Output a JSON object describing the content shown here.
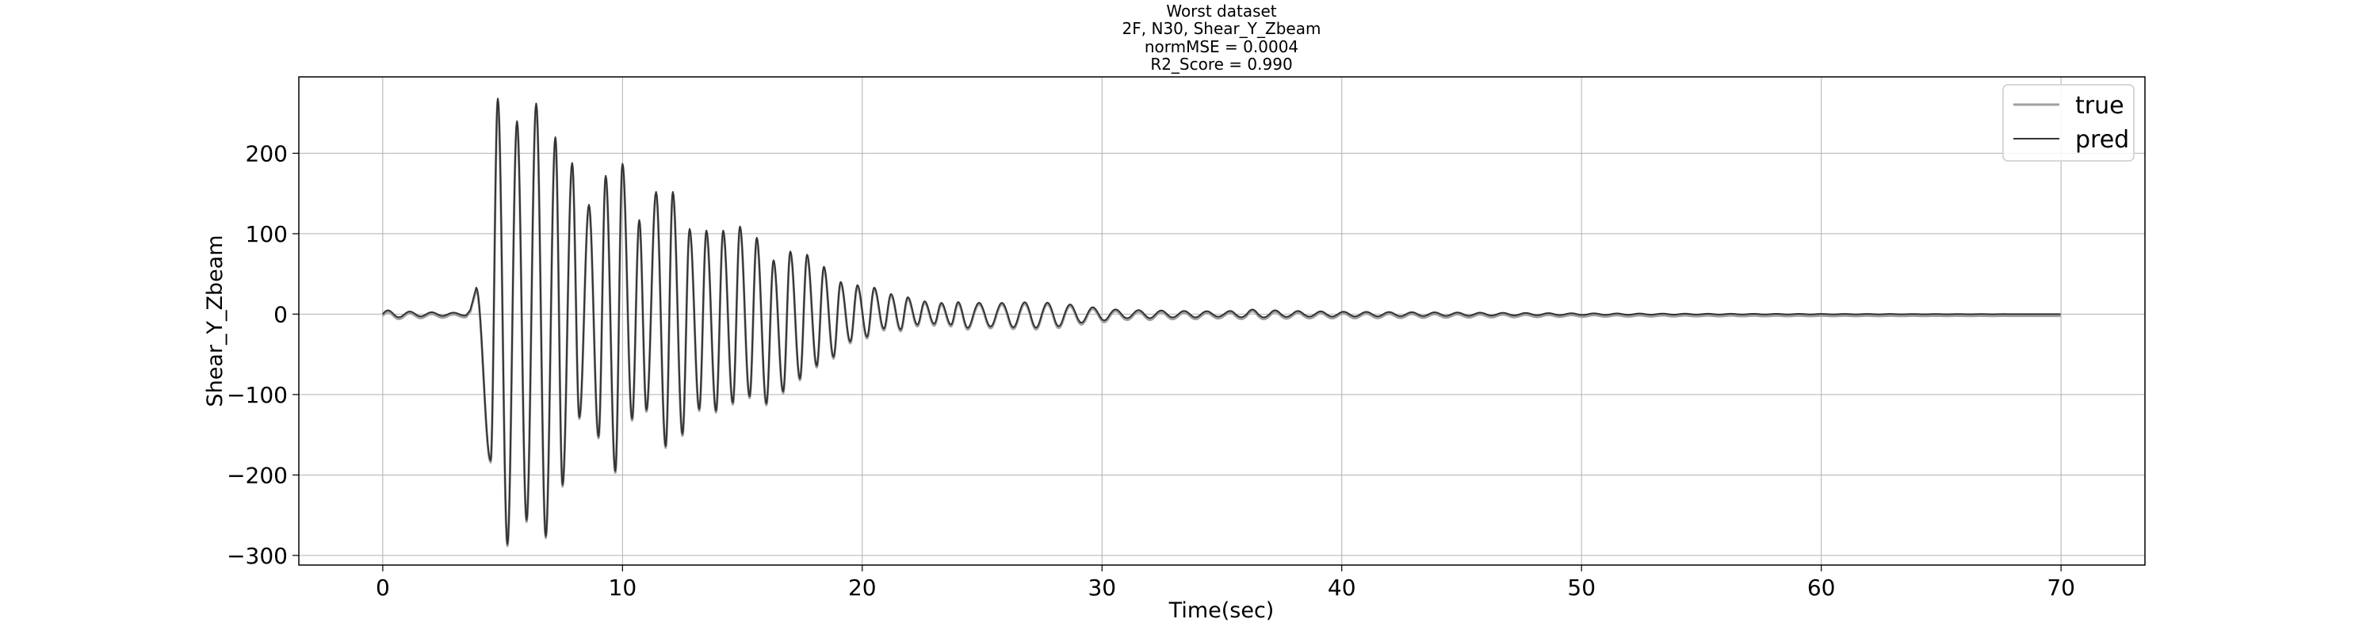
{
  "chart_data": {
    "type": "line",
    "title_lines": [
      "Worst dataset",
      "2F, N30, Shear_Y_Zbeam",
      "normMSE = 0.0004",
      "R2_Score = 0.990"
    ],
    "xlabel": "Time(sec)",
    "ylabel": "Shear_Y_Zbeam",
    "xlim": [
      -3.5,
      73.5
    ],
    "ylim": [
      -312,
      295
    ],
    "xticks": [
      0,
      10,
      20,
      30,
      40,
      50,
      60,
      70
    ],
    "yticks": [
      -300,
      -200,
      -100,
      0,
      100,
      200
    ],
    "xtick_labels": [
      "0",
      "10",
      "20",
      "30",
      "40",
      "50",
      "60",
      "70"
    ],
    "ytick_labels": [
      "−300",
      "−200",
      "−100",
      "0",
      "100",
      "200"
    ],
    "grid": true,
    "legend_position": "top-right",
    "x_range": [
      0,
      70
    ],
    "signal_description": {
      "pre_event": {
        "x": [
          0,
          3.5
        ],
        "amplitude": 4
      },
      "onset_peak": {
        "x": 3.9,
        "y": 33
      },
      "first_trough": {
        "x": 4.5,
        "y": -182
      },
      "peaks": [
        [
          4.8,
          268
        ],
        [
          5.6,
          240
        ],
        [
          6.4,
          262
        ],
        [
          7.2,
          220
        ],
        [
          7.9,
          188
        ],
        [
          8.6,
          136
        ],
        [
          9.3,
          172
        ],
        [
          10.0,
          187
        ],
        [
          10.7,
          117
        ],
        [
          11.4,
          152
        ],
        [
          12.1,
          152
        ],
        [
          12.8,
          106
        ],
        [
          13.5,
          104
        ],
        [
          14.2,
          104
        ],
        [
          14.9,
          109
        ],
        [
          15.6,
          95
        ],
        [
          16.3,
          67
        ],
        [
          17.0,
          78
        ],
        [
          17.7,
          74
        ],
        [
          18.4,
          59
        ],
        [
          19.1,
          40
        ],
        [
          19.8,
          36
        ],
        [
          20.5,
          33
        ],
        [
          21.2,
          25
        ],
        [
          21.9,
          21
        ],
        [
          22.6,
          16
        ],
        [
          23.3,
          14
        ],
        [
          24.0,
          15
        ],
        [
          25.0,
          14
        ],
        [
          26.0,
          14
        ],
        [
          27.0,
          15
        ],
        [
          28.0,
          14
        ],
        [
          29.0,
          11
        ],
        [
          30.0,
          7
        ],
        [
          31.0,
          5
        ],
        [
          32.0,
          5
        ],
        [
          33.0,
          4
        ],
        [
          34.0,
          4
        ],
        [
          35.0,
          3
        ],
        [
          36.0,
          6
        ],
        [
          37.0,
          5
        ],
        [
          38.0,
          4
        ],
        [
          40.0,
          3
        ],
        [
          45.0,
          2
        ],
        [
          50.0,
          1
        ],
        [
          55.0,
          0.5
        ],
        [
          60.0,
          0.3
        ],
        [
          70.0,
          0
        ]
      ],
      "troughs": [
        [
          5.2,
          -286
        ],
        [
          6.0,
          -256
        ],
        [
          6.8,
          -276
        ],
        [
          7.5,
          -212
        ],
        [
          8.2,
          -128
        ],
        [
          9.0,
          -152
        ],
        [
          9.7,
          -195
        ],
        [
          10.4,
          -130
        ],
        [
          11.0,
          -119
        ],
        [
          11.8,
          -164
        ],
        [
          12.5,
          -149
        ],
        [
          13.2,
          -118
        ],
        [
          13.9,
          -120
        ],
        [
          14.6,
          -110
        ],
        [
          15.3,
          -102
        ],
        [
          16.0,
          -111
        ],
        [
          16.7,
          -96
        ],
        [
          17.4,
          -80
        ],
        [
          18.1,
          -64
        ],
        [
          18.8,
          -53
        ],
        [
          19.5,
          -34
        ],
        [
          20.2,
          -28
        ],
        [
          20.9,
          -18
        ],
        [
          21.6,
          -19
        ],
        [
          22.3,
          -13
        ],
        [
          23.0,
          -12
        ],
        [
          23.7,
          -13
        ],
        [
          24.4,
          -17
        ],
        [
          25.0,
          -15
        ],
        [
          26.0,
          -16
        ],
        [
          27.0,
          -17
        ],
        [
          28.0,
          -16
        ],
        [
          29.0,
          -11
        ],
        [
          30.0,
          -8
        ],
        [
          31.0,
          -5
        ],
        [
          32.0,
          -5
        ],
        [
          33.0,
          -4
        ],
        [
          34.0,
          -4
        ],
        [
          35.0,
          -3
        ],
        [
          36.0,
          -4
        ],
        [
          37.0,
          -4
        ],
        [
          38.0,
          -3
        ],
        [
          40.0,
          -3
        ],
        [
          45.0,
          -2
        ],
        [
          50.0,
          -1
        ],
        [
          55.0,
          -0.5
        ],
        [
          60.0,
          -0.3
        ],
        [
          70.0,
          0
        ]
      ]
    },
    "series": [
      {
        "name": "true",
        "color": "#a0a0a0",
        "stroke_width": 3
      },
      {
        "name": "pred",
        "color": "#333333",
        "stroke_width": 2
      }
    ]
  }
}
